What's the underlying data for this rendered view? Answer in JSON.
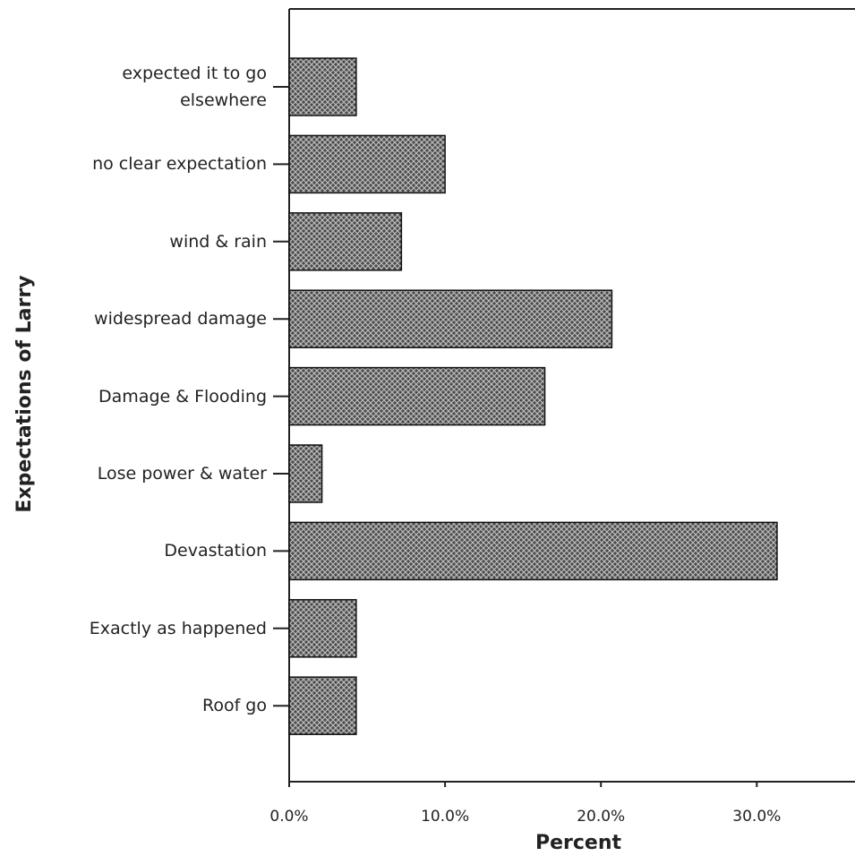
{
  "chart_data": {
    "type": "hbar",
    "xlabel": "Percent",
    "ylabel": "Expectations of Larry",
    "categories": [
      "expected it to go\nelsewhere",
      "no clear expectation",
      "wind & rain",
      "widespread damage",
      "Damage & Flooding",
      "Lose power & water",
      "Devastation",
      "Exactly as happened",
      "Roof go"
    ],
    "values": [
      4.3,
      10.0,
      7.2,
      20.7,
      16.4,
      2.1,
      31.3,
      4.3,
      4.3
    ],
    "color": "#4a4a4a",
    "xlim": [
      0,
      36.3
    ],
    "xticks": [
      {
        "value": 0,
        "label": "0.0%"
      },
      {
        "value": 10,
        "label": "10.0%"
      },
      {
        "value": 20,
        "label": "20.0%"
      },
      {
        "value": 30,
        "label": "30.0%"
      }
    ]
  }
}
